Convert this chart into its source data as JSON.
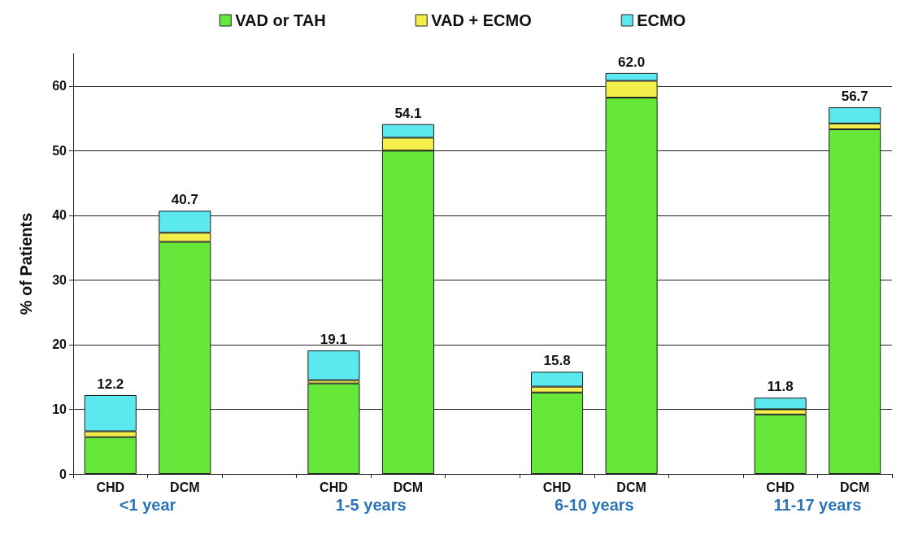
{
  "chart_data": {
    "type": "bar",
    "stacked": true,
    "ylabel": "% of Patients",
    "categories": [
      "CHD",
      "DCM",
      null,
      "CHD",
      "DCM",
      null,
      "CHD",
      "DCM",
      null,
      "CHD",
      "DCM"
    ],
    "series": [
      {
        "name": "VAD or TAH",
        "color": "#66e83a",
        "values": [
          5.7,
          35.9,
          null,
          14.0,
          50.0,
          null,
          12.6,
          58.2,
          null,
          9.2,
          53.3
        ]
      },
      {
        "name": "VAD + ECMO",
        "color": "#f2ef4a",
        "values": [
          0.9,
          1.4,
          null,
          0.5,
          2.0,
          null,
          0.9,
          2.6,
          null,
          0.8,
          0.9
        ]
      },
      {
        "name": "ECMO",
        "color": "#5ce8ef",
        "values": [
          5.6,
          3.4,
          null,
          4.6,
          2.1,
          null,
          2.3,
          1.2,
          null,
          1.8,
          2.5
        ]
      }
    ],
    "totals": [
      "12.2",
      "40.7",
      null,
      "19.1",
      "54.1",
      null,
      "15.8",
      "62.0",
      null,
      "11.8",
      "56.7"
    ],
    "annotations": [
      "<1 year",
      "1-5 years",
      "6-10 years",
      "11-17 years"
    ],
    "ylim": [
      0,
      65
    ],
    "yticks": [
      0,
      10,
      20,
      30,
      40,
      50,
      60
    ],
    "grid": "y",
    "legend": "top"
  }
}
